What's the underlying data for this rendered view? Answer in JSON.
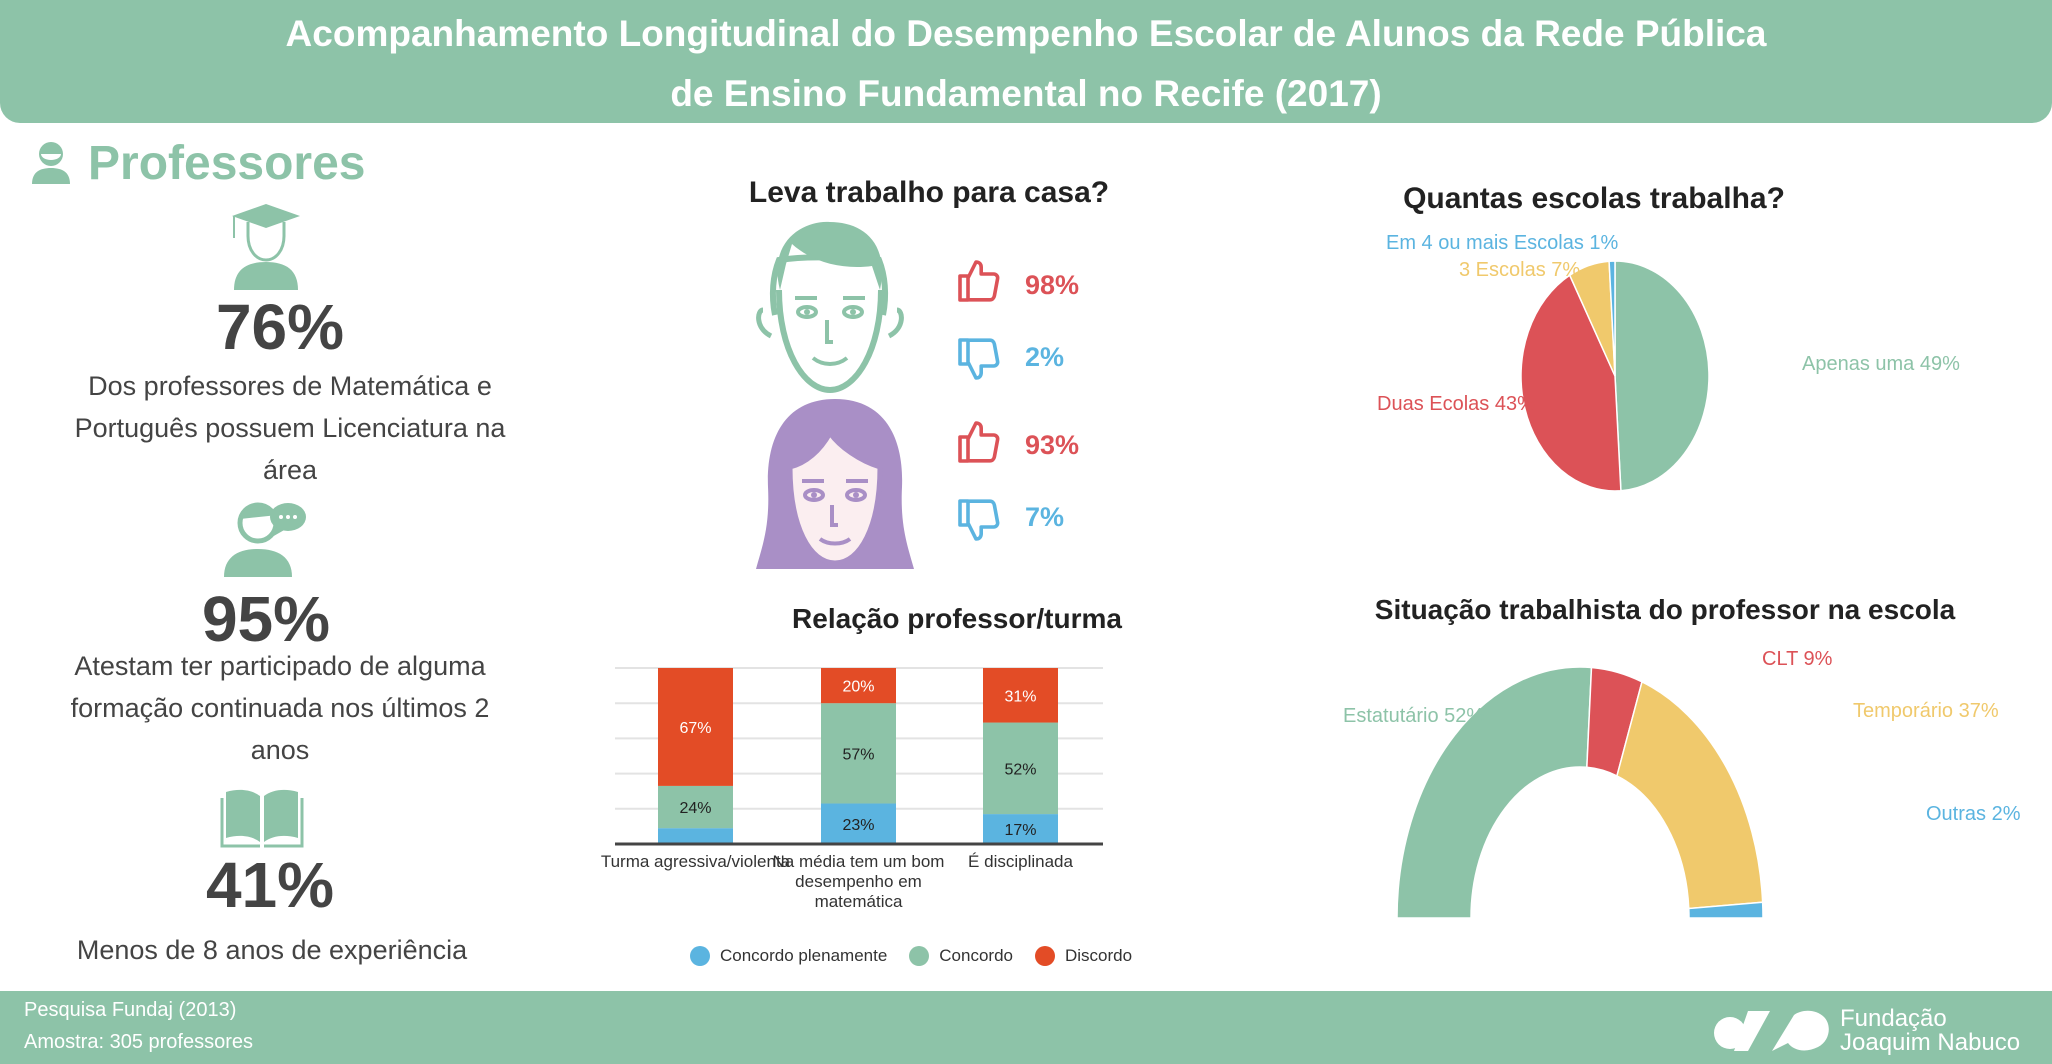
{
  "header": {
    "title_line1": "Acompanhamento Longitudinal do Desempenho Escolar de Alunos da Rede Pública",
    "title_line2": "de Ensino Fundamental no Recife (2017)"
  },
  "left": {
    "section_title": "Professores",
    "stats": [
      {
        "value": "76%",
        "lines": [
          "Dos professores de Matemática e",
          "Português possuem Licenciatura na",
          "área"
        ]
      },
      {
        "value": "95%",
        "lines": [
          "Atestam ter participado de alguma",
          "formação continuada nos últimos 2",
          "anos"
        ]
      },
      {
        "value": "41%",
        "lines": [
          "Menos de 8 anos de experiência"
        ]
      }
    ]
  },
  "homework": {
    "title": "Leva trabalho para casa?",
    "male": {
      "yes": "98%",
      "no": "2%"
    },
    "female": {
      "yes": "93%",
      "no": "7%"
    }
  },
  "colors": {
    "green": "#8dc3a8",
    "red": "#dc5257",
    "yellow": "#f0c96c",
    "blue": "#5bb4e0",
    "orange": "#e34c26",
    "purple": "#a98fc6"
  },
  "chart_data": [
    {
      "type": "bar",
      "stacked": true,
      "title": "Relação professor/turma",
      "categories": [
        "Turma agressiva/violenta",
        "Na média tem um bom desempenho em matemática",
        "É disciplinada"
      ],
      "category_lines": [
        [
          "Turma agressiva/violenta"
        ],
        [
          "Na média tem um bom",
          "desempenho em",
          "matemática"
        ],
        [
          "É disciplinada"
        ]
      ],
      "series": [
        {
          "name": "Concordo plenamente",
          "color": "#5bb4e0",
          "values": [
            9,
            23,
            17
          ],
          "labels": [
            "",
            "23%",
            "17%"
          ]
        },
        {
          "name": "Concordo",
          "color": "#8dc3a8",
          "values": [
            24,
            57,
            52
          ],
          "labels": [
            "24%",
            "57%",
            "52%"
          ]
        },
        {
          "name": "Discordo",
          "color": "#e34c26",
          "values": [
            67,
            20,
            31
          ],
          "labels": [
            "67%",
            "20%",
            "31%"
          ]
        }
      ],
      "ylim": [
        0,
        100
      ],
      "grid": true,
      "legend": "bottom"
    },
    {
      "type": "pie",
      "title": "Quantas escolas trabalha?",
      "slices": [
        {
          "label": "Apenas uma 49%",
          "value": 49,
          "color": "#8dc3a8"
        },
        {
          "label": "Duas Ecolas 43%",
          "value": 43,
          "color": "#dc5257"
        },
        {
          "label": "3 Escolas 7%",
          "value": 7,
          "color": "#f0c96c"
        },
        {
          "label": "Em 4 ou mais Escolas 1%",
          "value": 1,
          "color": "#5bb4e0"
        }
      ]
    },
    {
      "type": "pie",
      "variant": "semi-donut",
      "title": "Situação trabalhista do professor na escola",
      "slices": [
        {
          "label": "Estatutário 52%",
          "value": 52,
          "color": "#8dc3a8"
        },
        {
          "label": "CLT 9%",
          "value": 9,
          "color": "#dc5257"
        },
        {
          "label": "Temporário 37%",
          "value": 37,
          "color": "#f0c96c"
        },
        {
          "label": "Outras 2%",
          "value": 2,
          "color": "#5bb4e0"
        }
      ]
    }
  ],
  "footer": {
    "source": "Pesquisa Fundaj (2013)",
    "sample": "Amostra: 305 professores",
    "logo_text_line1": "Fundação",
    "logo_text_line2": "Joaquim Nabuco"
  }
}
